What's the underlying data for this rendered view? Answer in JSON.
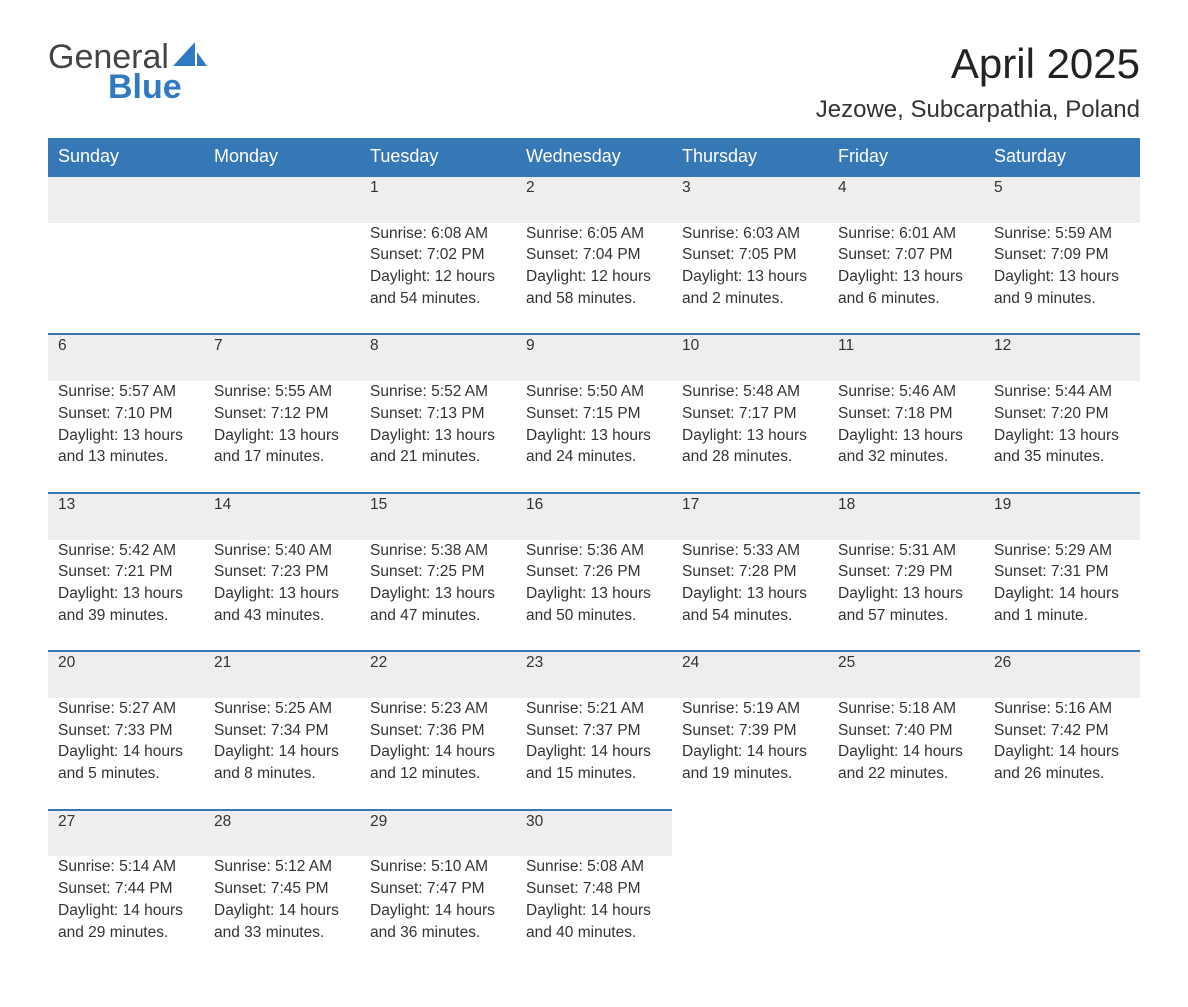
{
  "logo": {
    "general": "General",
    "blue": "Blue"
  },
  "title": "April 2025",
  "subtitle": "Jezowe, Subcarpathia, Poland",
  "colors": {
    "header_bg": "#3677b6",
    "header_text": "#ffffff",
    "daynum_bg": "#eeeeee",
    "daynum_border": "#3677b6",
    "body_text": "#333333",
    "logo_blue": "#2f7ac0"
  },
  "weekdays": [
    "Sunday",
    "Monday",
    "Tuesday",
    "Wednesday",
    "Thursday",
    "Friday",
    "Saturday"
  ],
  "weeks": [
    {
      "days": [
        null,
        null,
        {
          "n": "1",
          "sunrise": "6:08 AM",
          "sunset": "7:02 PM",
          "dl1": "Daylight: 12 hours",
          "dl2": "and 54 minutes."
        },
        {
          "n": "2",
          "sunrise": "6:05 AM",
          "sunset": "7:04 PM",
          "dl1": "Daylight: 12 hours",
          "dl2": "and 58 minutes."
        },
        {
          "n": "3",
          "sunrise": "6:03 AM",
          "sunset": "7:05 PM",
          "dl1": "Daylight: 13 hours",
          "dl2": "and 2 minutes."
        },
        {
          "n": "4",
          "sunrise": "6:01 AM",
          "sunset": "7:07 PM",
          "dl1": "Daylight: 13 hours",
          "dl2": "and 6 minutes."
        },
        {
          "n": "5",
          "sunrise": "5:59 AM",
          "sunset": "7:09 PM",
          "dl1": "Daylight: 13 hours",
          "dl2": "and 9 minutes."
        }
      ]
    },
    {
      "days": [
        {
          "n": "6",
          "sunrise": "5:57 AM",
          "sunset": "7:10 PM",
          "dl1": "Daylight: 13 hours",
          "dl2": "and 13 minutes."
        },
        {
          "n": "7",
          "sunrise": "5:55 AM",
          "sunset": "7:12 PM",
          "dl1": "Daylight: 13 hours",
          "dl2": "and 17 minutes."
        },
        {
          "n": "8",
          "sunrise": "5:52 AM",
          "sunset": "7:13 PM",
          "dl1": "Daylight: 13 hours",
          "dl2": "and 21 minutes."
        },
        {
          "n": "9",
          "sunrise": "5:50 AM",
          "sunset": "7:15 PM",
          "dl1": "Daylight: 13 hours",
          "dl2": "and 24 minutes."
        },
        {
          "n": "10",
          "sunrise": "5:48 AM",
          "sunset": "7:17 PM",
          "dl1": "Daylight: 13 hours",
          "dl2": "and 28 minutes."
        },
        {
          "n": "11",
          "sunrise": "5:46 AM",
          "sunset": "7:18 PM",
          "dl1": "Daylight: 13 hours",
          "dl2": "and 32 minutes."
        },
        {
          "n": "12",
          "sunrise": "5:44 AM",
          "sunset": "7:20 PM",
          "dl1": "Daylight: 13 hours",
          "dl2": "and 35 minutes."
        }
      ]
    },
    {
      "days": [
        {
          "n": "13",
          "sunrise": "5:42 AM",
          "sunset": "7:21 PM",
          "dl1": "Daylight: 13 hours",
          "dl2": "and 39 minutes."
        },
        {
          "n": "14",
          "sunrise": "5:40 AM",
          "sunset": "7:23 PM",
          "dl1": "Daylight: 13 hours",
          "dl2": "and 43 minutes."
        },
        {
          "n": "15",
          "sunrise": "5:38 AM",
          "sunset": "7:25 PM",
          "dl1": "Daylight: 13 hours",
          "dl2": "and 47 minutes."
        },
        {
          "n": "16",
          "sunrise": "5:36 AM",
          "sunset": "7:26 PM",
          "dl1": "Daylight: 13 hours",
          "dl2": "and 50 minutes."
        },
        {
          "n": "17",
          "sunrise": "5:33 AM",
          "sunset": "7:28 PM",
          "dl1": "Daylight: 13 hours",
          "dl2": "and 54 minutes."
        },
        {
          "n": "18",
          "sunrise": "5:31 AM",
          "sunset": "7:29 PM",
          "dl1": "Daylight: 13 hours",
          "dl2": "and 57 minutes."
        },
        {
          "n": "19",
          "sunrise": "5:29 AM",
          "sunset": "7:31 PM",
          "dl1": "Daylight: 14 hours",
          "dl2": "and 1 minute."
        }
      ]
    },
    {
      "days": [
        {
          "n": "20",
          "sunrise": "5:27 AM",
          "sunset": "7:33 PM",
          "dl1": "Daylight: 14 hours",
          "dl2": "and 5 minutes."
        },
        {
          "n": "21",
          "sunrise": "5:25 AM",
          "sunset": "7:34 PM",
          "dl1": "Daylight: 14 hours",
          "dl2": "and 8 minutes."
        },
        {
          "n": "22",
          "sunrise": "5:23 AM",
          "sunset": "7:36 PM",
          "dl1": "Daylight: 14 hours",
          "dl2": "and 12 minutes."
        },
        {
          "n": "23",
          "sunrise": "5:21 AM",
          "sunset": "7:37 PM",
          "dl1": "Daylight: 14 hours",
          "dl2": "and 15 minutes."
        },
        {
          "n": "24",
          "sunrise": "5:19 AM",
          "sunset": "7:39 PM",
          "dl1": "Daylight: 14 hours",
          "dl2": "and 19 minutes."
        },
        {
          "n": "25",
          "sunrise": "5:18 AM",
          "sunset": "7:40 PM",
          "dl1": "Daylight: 14 hours",
          "dl2": "and 22 minutes."
        },
        {
          "n": "26",
          "sunrise": "5:16 AM",
          "sunset": "7:42 PM",
          "dl1": "Daylight: 14 hours",
          "dl2": "and 26 minutes."
        }
      ]
    },
    {
      "days": [
        {
          "n": "27",
          "sunrise": "5:14 AM",
          "sunset": "7:44 PM",
          "dl1": "Daylight: 14 hours",
          "dl2": "and 29 minutes."
        },
        {
          "n": "28",
          "sunrise": "5:12 AM",
          "sunset": "7:45 PM",
          "dl1": "Daylight: 14 hours",
          "dl2": "and 33 minutes."
        },
        {
          "n": "29",
          "sunrise": "5:10 AM",
          "sunset": "7:47 PM",
          "dl1": "Daylight: 14 hours",
          "dl2": "and 36 minutes."
        },
        {
          "n": "30",
          "sunrise": "5:08 AM",
          "sunset": "7:48 PM",
          "dl1": "Daylight: 14 hours",
          "dl2": "and 40 minutes."
        },
        null,
        null,
        null
      ]
    }
  ],
  "labels": {
    "sunrise": "Sunrise: ",
    "sunset": "Sunset: "
  }
}
